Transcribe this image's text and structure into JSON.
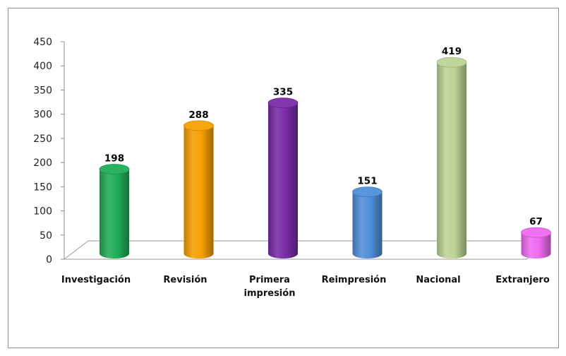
{
  "chart_data": {
    "type": "bar",
    "categories": [
      "Investigación",
      "Revisión",
      "Primera impresión",
      "Reimpresión",
      "Nacional",
      "Extranjero"
    ],
    "category_lines": [
      [
        "Investigación"
      ],
      [
        "Revisión"
      ],
      [
        "Primera",
        "impresión"
      ],
      [
        "Reimpresión"
      ],
      [
        "Nacional"
      ],
      [
        "Extranjero"
      ]
    ],
    "values": [
      198,
      288,
      335,
      151,
      419,
      67
    ],
    "value_labels": [
      "198",
      "288",
      "335",
      "151",
      "419",
      "67"
    ],
    "colors": [
      "#1fae57",
      "#f5a000",
      "#7a2ba8",
      "#4f8fd8",
      "#bcd395",
      "#f06af0"
    ],
    "ylim": [
      0,
      450
    ],
    "yticks": [
      "0",
      "50",
      "100",
      "150",
      "200",
      "250",
      "300",
      "350",
      "400",
      "450"
    ],
    "grid": false,
    "legend": false,
    "style": "3d-cylinder"
  }
}
